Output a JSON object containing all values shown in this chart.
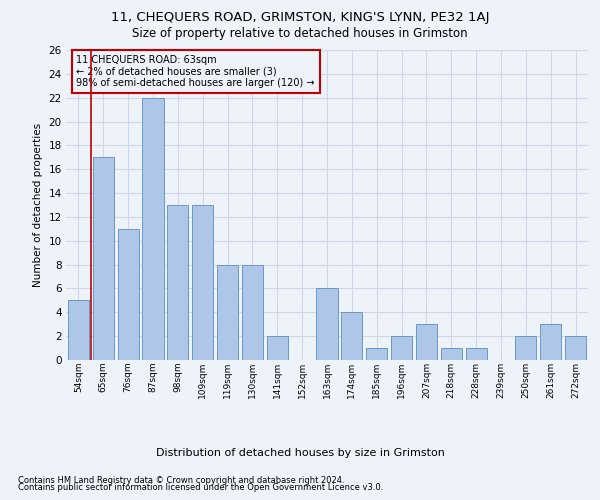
{
  "title1": "11, CHEQUERS ROAD, GRIMSTON, KING'S LYNN, PE32 1AJ",
  "title2": "Size of property relative to detached houses in Grimston",
  "xlabel": "Distribution of detached houses by size in Grimston",
  "ylabel": "Number of detached properties",
  "footer1": "Contains HM Land Registry data © Crown copyright and database right 2024.",
  "footer2": "Contains public sector information licensed under the Open Government Licence v3.0.",
  "annotation_line1": "11 CHEQUERS ROAD: 63sqm",
  "annotation_line2": "← 2% of detached houses are smaller (3)",
  "annotation_line3": "98% of semi-detached houses are larger (120) →",
  "bar_labels": [
    "54sqm",
    "65sqm",
    "76sqm",
    "87sqm",
    "98sqm",
    "109sqm",
    "119sqm",
    "130sqm",
    "141sqm",
    "152sqm",
    "163sqm",
    "174sqm",
    "185sqm",
    "196sqm",
    "207sqm",
    "218sqm",
    "228sqm",
    "239sqm",
    "250sqm",
    "261sqm",
    "272sqm"
  ],
  "bar_values": [
    5,
    17,
    11,
    22,
    13,
    13,
    8,
    8,
    2,
    0,
    6,
    4,
    1,
    2,
    3,
    1,
    1,
    0,
    2,
    3,
    2
  ],
  "bar_color": "#aec6e8",
  "bar_edge_color": "#5a8fc0",
  "highlight_color": "#c00000",
  "ylim": [
    0,
    26
  ],
  "yticks": [
    0,
    2,
    4,
    6,
    8,
    10,
    12,
    14,
    16,
    18,
    20,
    22,
    24,
    26
  ],
  "grid_color": "#d0d8e8",
  "background_color": "#eef2f9"
}
